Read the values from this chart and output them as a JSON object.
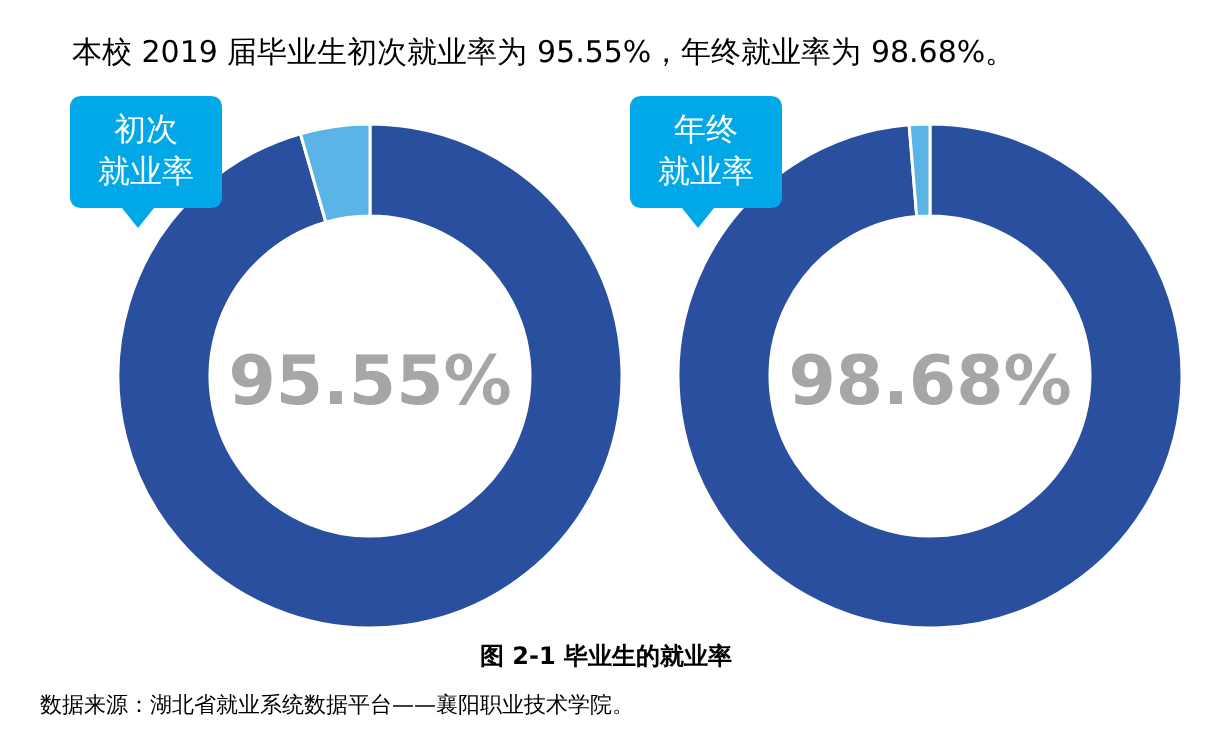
{
  "chart_data": [
    {
      "type": "donut",
      "title": "初次就业率",
      "categories": [
        null,
        null
      ],
      "values": [
        95.55,
        4.45
      ],
      "colors": [
        "#2a4f9f",
        "#5ab4e6"
      ],
      "value_labels": [
        "95.55%",
        null
      ],
      "annotations": [
        "本校 2019 届毕业生初次就业率为 95.55%，年终就业率为 98.68%。",
        "图  2-1    毕业生的就业率",
        "数据来源：湖北省就业系统数据平台——襄阳职业技术学院。"
      ]
    },
    {
      "type": "donut",
      "title": "年终就业率",
      "categories": [
        null,
        null
      ],
      "values": [
        98.68,
        1.32
      ],
      "colors": [
        "#2a4f9f",
        "#5ab4e6"
      ],
      "value_labels": [
        "98.68%",
        null
      ]
    }
  ]
}
